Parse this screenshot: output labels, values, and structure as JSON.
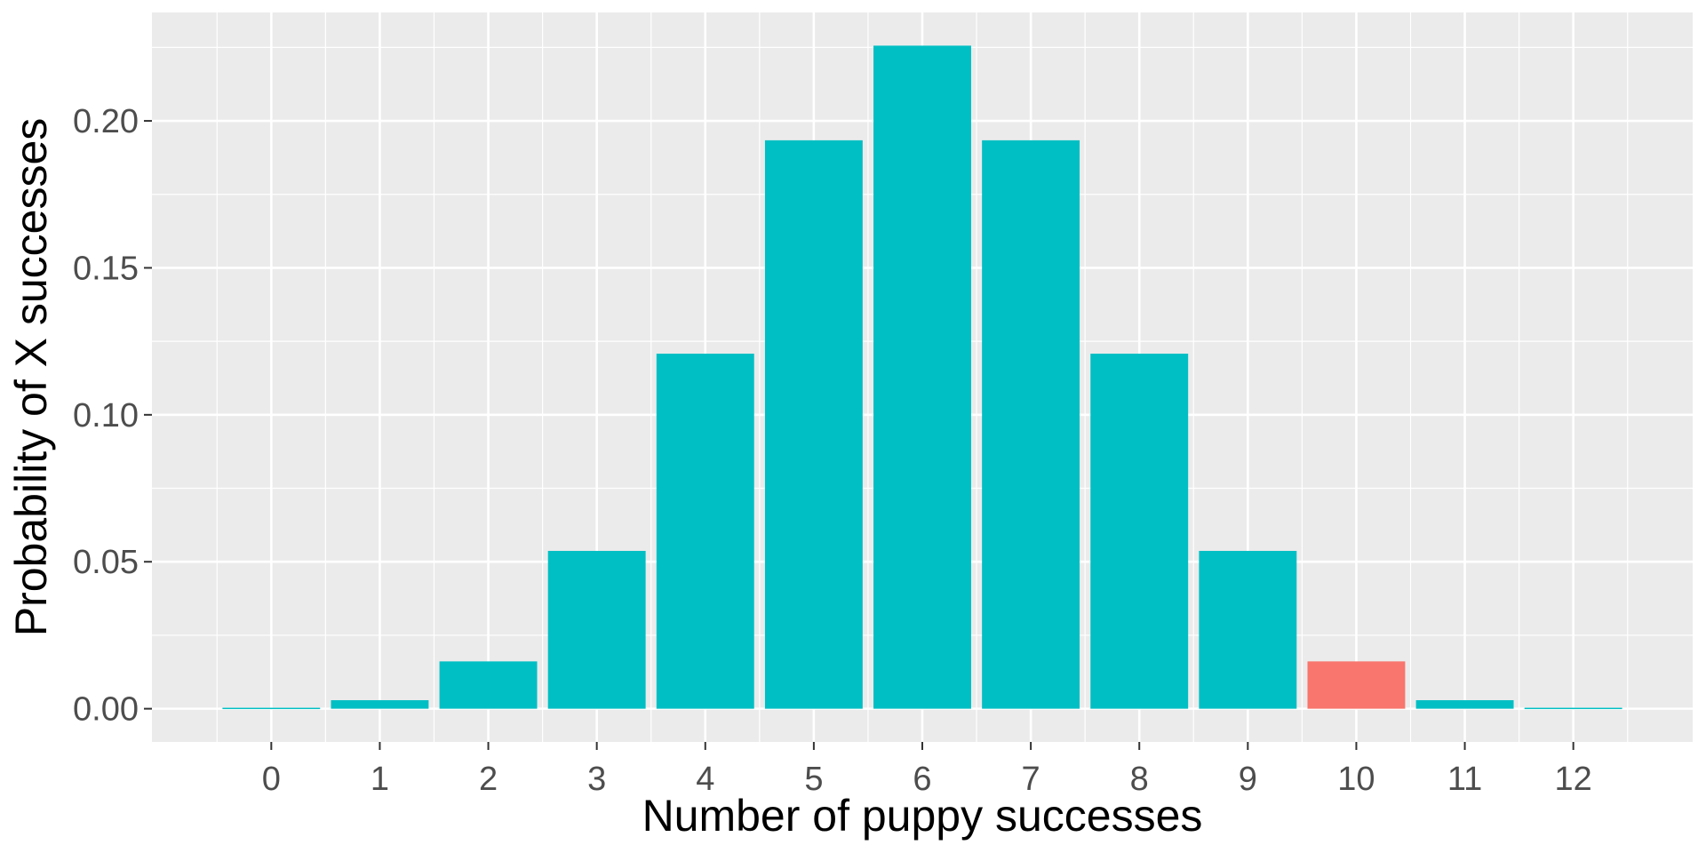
{
  "chart_data": {
    "type": "bar",
    "title": "",
    "xlabel": "Number of puppy successes",
    "ylabel": "Probability of X successes",
    "categories": [
      "0",
      "1",
      "2",
      "3",
      "4",
      "5",
      "6",
      "7",
      "8",
      "9",
      "10",
      "11",
      "12"
    ],
    "values": [
      0.0002,
      0.0029,
      0.0161,
      0.0537,
      0.1208,
      0.1934,
      0.2256,
      0.1934,
      0.1208,
      0.0537,
      0.0161,
      0.0029,
      0.0002
    ],
    "highlight_category": "10",
    "y_ticks": [
      "0.00",
      "0.05",
      "0.10",
      "0.15",
      "0.20"
    ],
    "ylim": [
      -0.0113,
      0.2369
    ],
    "xlim": [
      -1.1,
      13.1
    ],
    "grid": true,
    "legend": "none",
    "colors": {
      "bar": "#00BFC4",
      "highlight": "#F8766D",
      "panel": "#EBEBEB",
      "grid": "#FFFFFF",
      "tick_label": "#4D4D4D",
      "title": "#000000"
    }
  }
}
